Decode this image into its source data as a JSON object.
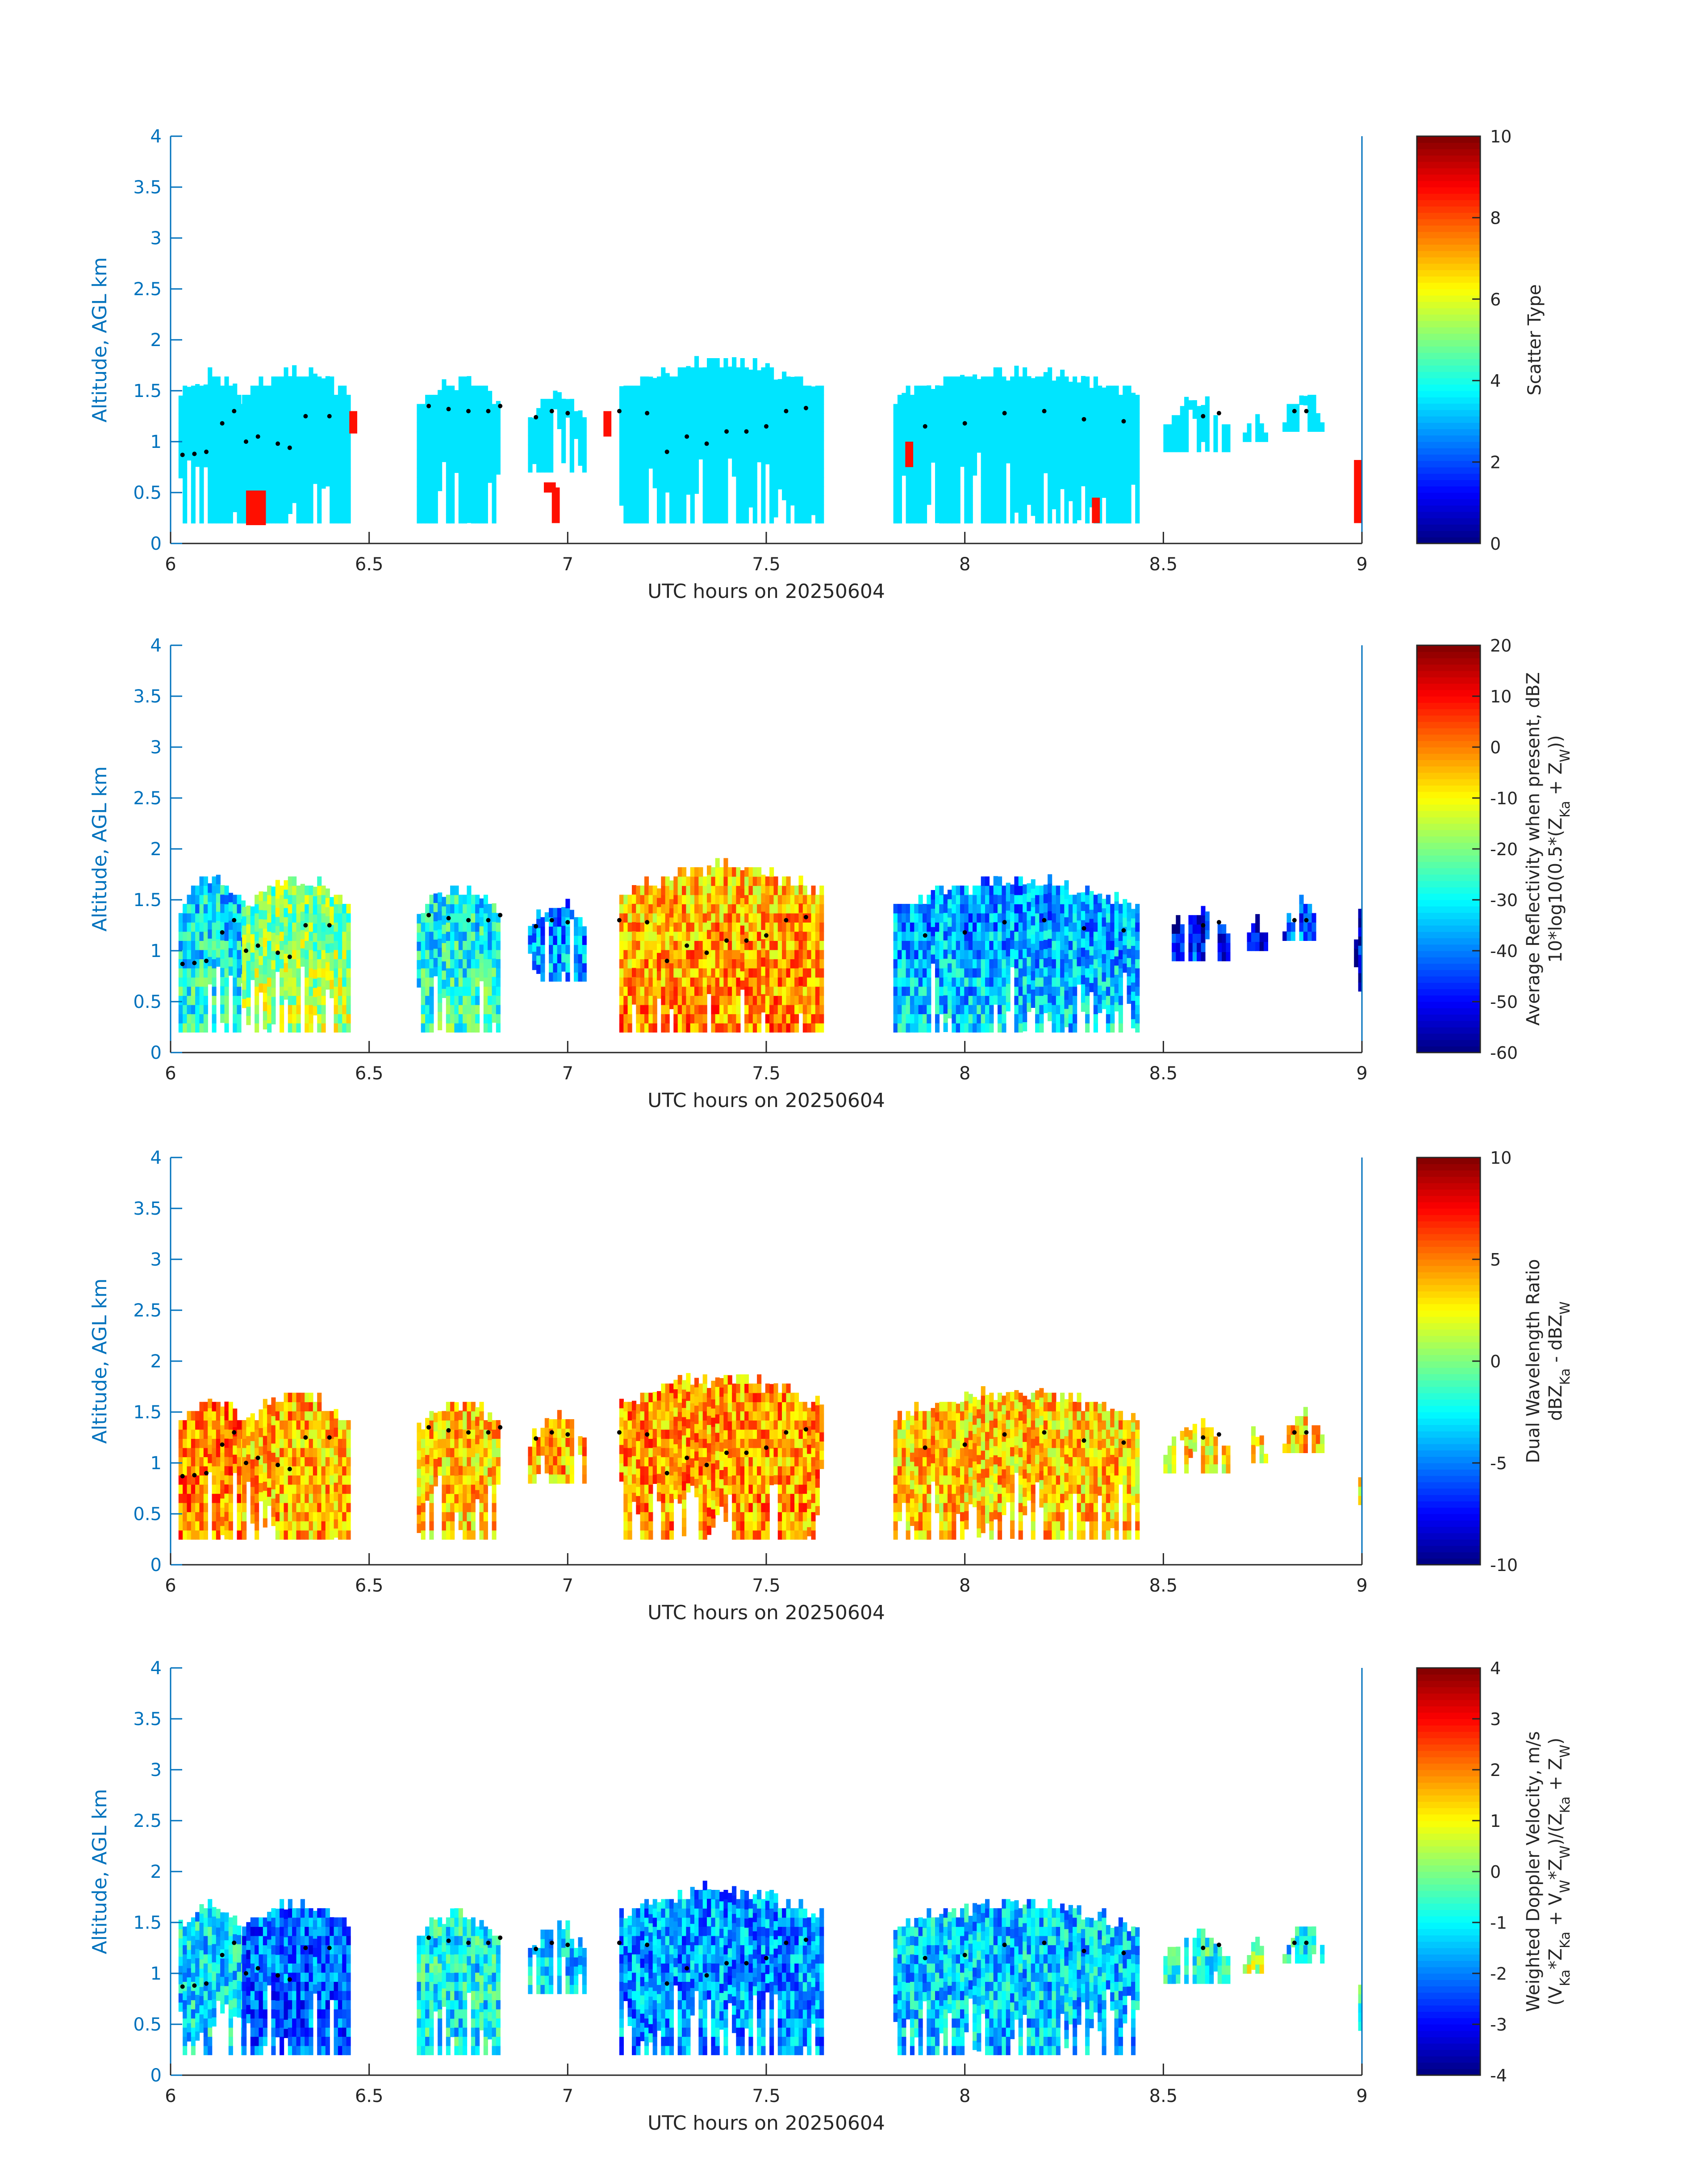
{
  "chart_data": [
    {
      "type": "heatmap",
      "panel": "scatter-type",
      "xlabel": "UTC hours on 20250604",
      "ylabel": "Altitude, AGL km",
      "xlim": [
        6,
        9
      ],
      "ylim": [
        0,
        4
      ],
      "xticks": [
        "6",
        "6.5",
        "7",
        "7.5",
        "8",
        "8.5",
        "9"
      ],
      "yticks": [
        "0",
        "0.5",
        "1",
        "1.5",
        "2",
        "2.5",
        "3",
        "3.5",
        "4"
      ],
      "colorbar": {
        "title_lines": [
          "Scatter Type"
        ],
        "range": [
          0,
          10
        ],
        "ticks": [
          "0",
          "2",
          "4",
          "6",
          "8",
          "10"
        ]
      },
      "colormap": "jet",
      "cloud_blocks": [
        {
          "x0": 6.02,
          "x1": 6.18,
          "base": 0.2,
          "top": 1.6,
          "value": 3.5
        },
        {
          "x0": 6.18,
          "x1": 6.45,
          "base": 0.2,
          "top": 1.65,
          "value": 3.5
        },
        {
          "x0": 6.62,
          "x1": 6.83,
          "base": 0.2,
          "top": 1.55,
          "value": 3.5
        },
        {
          "x0": 6.9,
          "x1": 7.04,
          "base": 0.7,
          "top": 1.42,
          "value": 3.5
        },
        {
          "x0": 7.13,
          "x1": 7.64,
          "base": 0.2,
          "top": 1.72,
          "value": 3.5
        },
        {
          "x0": 7.82,
          "x1": 8.43,
          "base": 0.2,
          "top": 1.65,
          "value": 3.5
        },
        {
          "x0": 8.5,
          "x1": 8.66,
          "base": 0.9,
          "top": 1.35,
          "value": 3.5
        },
        {
          "x0": 8.7,
          "x1": 8.76,
          "base": 1.0,
          "top": 1.25,
          "value": 3.5
        },
        {
          "x0": 8.8,
          "x1": 8.9,
          "base": 1.1,
          "top": 1.42,
          "value": 3.5
        }
      ],
      "extra_patches": [
        {
          "x0": 6.19,
          "x1": 6.24,
          "base": 0.18,
          "top": 0.52,
          "value": 8.6
        },
        {
          "x0": 6.45,
          "x1": 6.47,
          "base": 1.08,
          "top": 1.3,
          "value": 8.6
        },
        {
          "x0": 6.94,
          "x1": 6.97,
          "base": 0.5,
          "top": 0.6,
          "value": 8.6
        },
        {
          "x0": 6.96,
          "x1": 6.98,
          "base": 0.2,
          "top": 0.55,
          "value": 8.6
        },
        {
          "x0": 7.09,
          "x1": 7.11,
          "base": 1.05,
          "top": 1.3,
          "value": 8.6
        },
        {
          "x0": 7.85,
          "x1": 7.87,
          "base": 0.75,
          "top": 1.0,
          "value": 8.6
        },
        {
          "x0": 8.32,
          "x1": 8.34,
          "base": 0.2,
          "top": 0.45,
          "value": 8.6
        },
        {
          "x0": 8.98,
          "x1": 9.0,
          "base": 0.2,
          "top": 0.82,
          "value": 8.6
        }
      ],
      "cloud_top_dots": [
        [
          6.03,
          0.87
        ],
        [
          6.06,
          0.88
        ],
        [
          6.09,
          0.9
        ],
        [
          6.13,
          1.18
        ],
        [
          6.16,
          1.3
        ],
        [
          6.19,
          1.0
        ],
        [
          6.22,
          1.05
        ],
        [
          6.27,
          0.98
        ],
        [
          6.3,
          0.94
        ],
        [
          6.34,
          1.25
        ],
        [
          6.4,
          1.25
        ],
        [
          6.65,
          1.35
        ],
        [
          6.7,
          1.32
        ],
        [
          6.75,
          1.3
        ],
        [
          6.8,
          1.3
        ],
        [
          6.83,
          1.35
        ],
        [
          6.92,
          1.24
        ],
        [
          6.96,
          1.3
        ],
        [
          7.0,
          1.28
        ],
        [
          7.13,
          1.3
        ],
        [
          7.2,
          1.28
        ],
        [
          7.25,
          0.9
        ],
        [
          7.3,
          1.05
        ],
        [
          7.35,
          0.98
        ],
        [
          7.4,
          1.1
        ],
        [
          7.45,
          1.1
        ],
        [
          7.5,
          1.15
        ],
        [
          7.55,
          1.3
        ],
        [
          7.6,
          1.33
        ],
        [
          7.9,
          1.15
        ],
        [
          8.0,
          1.18
        ],
        [
          8.1,
          1.28
        ],
        [
          8.2,
          1.3
        ],
        [
          8.3,
          1.22
        ],
        [
          8.4,
          1.2
        ],
        [
          8.6,
          1.25
        ],
        [
          8.64,
          1.28
        ],
        [
          8.83,
          1.3
        ],
        [
          8.86,
          1.3
        ]
      ]
    },
    {
      "type": "heatmap",
      "panel": "average-reflectivity",
      "xlabel": "UTC hours on 20250604",
      "ylabel": "Altitude, AGL km",
      "xlim": [
        6,
        9
      ],
      "ylim": [
        0,
        4
      ],
      "xticks": [
        "6",
        "6.5",
        "7",
        "7.5",
        "8",
        "8.5",
        "9"
      ],
      "yticks": [
        "0",
        "0.5",
        "1",
        "1.5",
        "2",
        "2.5",
        "3",
        "3.5",
        "4"
      ],
      "colorbar": {
        "title_lines": [
          "Average Reflectivity when present, dBZ",
          "10*log10(0.5*(Z_Ka + Z_W))"
        ],
        "range": [
          -60,
          20
        ],
        "ticks": [
          "-60",
          "-50",
          "-40",
          "-30",
          "-20",
          "-10",
          "0",
          "10",
          "20"
        ]
      },
      "colormap": "jet",
      "cloud_blocks": [
        {
          "x0": 6.02,
          "x1": 6.18,
          "base": 0.2,
          "top": 1.65,
          "value": -30
        },
        {
          "x0": 6.18,
          "x1": 6.45,
          "base": 0.2,
          "top": 1.65,
          "value": -18
        },
        {
          "x0": 6.62,
          "x1": 6.83,
          "base": 0.2,
          "top": 1.57,
          "value": -28
        },
        {
          "x0": 6.9,
          "x1": 7.04,
          "base": 0.7,
          "top": 1.42,
          "value": -38
        },
        {
          "x0": 7.13,
          "x1": 7.64,
          "base": 0.2,
          "top": 1.78,
          "value": -3
        },
        {
          "x0": 7.82,
          "x1": 8.43,
          "base": 0.2,
          "top": 1.65,
          "value": -36
        },
        {
          "x0": 8.5,
          "x1": 8.66,
          "base": 0.9,
          "top": 1.35,
          "value": -50
        },
        {
          "x0": 8.7,
          "x1": 8.76,
          "base": 1.0,
          "top": 1.25,
          "value": -50
        },
        {
          "x0": 8.8,
          "x1": 8.9,
          "base": 1.1,
          "top": 1.42,
          "value": -45
        },
        {
          "x0": 8.98,
          "x1": 9.0,
          "base": 0.2,
          "top": 1.3,
          "value": -50
        }
      ],
      "cloud_top_dots": [
        [
          6.03,
          0.87
        ],
        [
          6.06,
          0.88
        ],
        [
          6.09,
          0.9
        ],
        [
          6.13,
          1.18
        ],
        [
          6.16,
          1.3
        ],
        [
          6.19,
          1.0
        ],
        [
          6.22,
          1.05
        ],
        [
          6.27,
          0.98
        ],
        [
          6.3,
          0.94
        ],
        [
          6.34,
          1.25
        ],
        [
          6.4,
          1.25
        ],
        [
          6.65,
          1.35
        ],
        [
          6.7,
          1.32
        ],
        [
          6.75,
          1.3
        ],
        [
          6.8,
          1.3
        ],
        [
          6.83,
          1.35
        ],
        [
          6.92,
          1.24
        ],
        [
          6.96,
          1.3
        ],
        [
          7.0,
          1.28
        ],
        [
          7.13,
          1.3
        ],
        [
          7.2,
          1.28
        ],
        [
          7.25,
          0.9
        ],
        [
          7.3,
          1.05
        ],
        [
          7.35,
          0.98
        ],
        [
          7.4,
          1.1
        ],
        [
          7.45,
          1.1
        ],
        [
          7.5,
          1.15
        ],
        [
          7.55,
          1.3
        ],
        [
          7.6,
          1.33
        ],
        [
          7.9,
          1.15
        ],
        [
          8.0,
          1.18
        ],
        [
          8.1,
          1.28
        ],
        [
          8.2,
          1.3
        ],
        [
          8.3,
          1.22
        ],
        [
          8.4,
          1.2
        ],
        [
          8.6,
          1.25
        ],
        [
          8.64,
          1.28
        ],
        [
          8.83,
          1.3
        ],
        [
          8.86,
          1.3
        ]
      ]
    },
    {
      "type": "heatmap",
      "panel": "dual-wavelength-ratio",
      "xlabel": "UTC hours on 20250604",
      "ylabel": "Altitude, AGL km",
      "xlim": [
        6,
        9
      ],
      "ylim": [
        0,
        4
      ],
      "xticks": [
        "6",
        "6.5",
        "7",
        "7.5",
        "8",
        "8.5",
        "9"
      ],
      "yticks": [
        "0",
        "0.5",
        "1",
        "1.5",
        "2",
        "2.5",
        "3",
        "3.5",
        "4"
      ],
      "colorbar": {
        "title_lines": [
          "Dual Wavelength Ratio",
          "dBZ_Ka - dBZ_W"
        ],
        "range": [
          -10,
          10
        ],
        "ticks": [
          "-10",
          "-5",
          "0",
          "5",
          "10"
        ]
      },
      "colormap": "jet",
      "cloud_blocks": [
        {
          "x0": 6.02,
          "x1": 6.18,
          "base": 0.25,
          "top": 1.6,
          "value": 5
        },
        {
          "x0": 6.18,
          "x1": 6.45,
          "base": 0.25,
          "top": 1.6,
          "value": 4
        },
        {
          "x0": 6.62,
          "x1": 6.83,
          "base": 0.25,
          "top": 1.57,
          "value": 3.5
        },
        {
          "x0": 6.9,
          "x1": 7.04,
          "base": 0.8,
          "top": 1.42,
          "value": 4
        },
        {
          "x0": 7.13,
          "x1": 7.64,
          "base": 0.25,
          "top": 1.78,
          "value": 4.5
        },
        {
          "x0": 7.82,
          "x1": 8.43,
          "base": 0.25,
          "top": 1.65,
          "value": 3.5
        },
        {
          "x0": 8.5,
          "x1": 8.66,
          "base": 0.9,
          "top": 1.35,
          "value": 3
        },
        {
          "x0": 8.7,
          "x1": 8.76,
          "base": 1.0,
          "top": 1.25,
          "value": 3
        },
        {
          "x0": 8.8,
          "x1": 8.9,
          "base": 1.1,
          "top": 1.42,
          "value": 3.5
        },
        {
          "x0": 8.98,
          "x1": 9.0,
          "base": 0.25,
          "top": 0.8,
          "value": 2
        }
      ],
      "cloud_top_dots": [
        [
          6.03,
          0.87
        ],
        [
          6.06,
          0.88
        ],
        [
          6.09,
          0.9
        ],
        [
          6.13,
          1.18
        ],
        [
          6.16,
          1.3
        ],
        [
          6.19,
          1.0
        ],
        [
          6.22,
          1.05
        ],
        [
          6.27,
          0.98
        ],
        [
          6.3,
          0.94
        ],
        [
          6.34,
          1.25
        ],
        [
          6.4,
          1.25
        ],
        [
          6.65,
          1.35
        ],
        [
          6.7,
          1.32
        ],
        [
          6.75,
          1.3
        ],
        [
          6.8,
          1.3
        ],
        [
          6.83,
          1.35
        ],
        [
          6.92,
          1.24
        ],
        [
          6.96,
          1.3
        ],
        [
          7.0,
          1.28
        ],
        [
          7.13,
          1.3
        ],
        [
          7.2,
          1.28
        ],
        [
          7.25,
          0.9
        ],
        [
          7.3,
          1.05
        ],
        [
          7.35,
          0.98
        ],
        [
          7.4,
          1.1
        ],
        [
          7.45,
          1.1
        ],
        [
          7.5,
          1.15
        ],
        [
          7.55,
          1.3
        ],
        [
          7.6,
          1.33
        ],
        [
          7.9,
          1.15
        ],
        [
          8.0,
          1.18
        ],
        [
          8.1,
          1.28
        ],
        [
          8.2,
          1.3
        ],
        [
          8.3,
          1.22
        ],
        [
          8.4,
          1.2
        ],
        [
          8.6,
          1.25
        ],
        [
          8.64,
          1.28
        ],
        [
          8.83,
          1.3
        ],
        [
          8.86,
          1.3
        ]
      ]
    },
    {
      "type": "heatmap",
      "panel": "weighted-doppler-velocity",
      "xlabel": "UTC hours on 20250604",
      "ylabel": "Altitude, AGL km",
      "xlim": [
        6,
        9
      ],
      "ylim": [
        0,
        4
      ],
      "xticks": [
        "6",
        "6.5",
        "7",
        "7.5",
        "8",
        "8.5",
        "9"
      ],
      "yticks": [
        "0",
        "0.5",
        "1",
        "1.5",
        "2",
        "2.5",
        "3",
        "3.5",
        "4"
      ],
      "colorbar": {
        "title_lines": [
          "Weighted Doppler Velocity, m/s",
          "(V_Ka*Z_Ka + V_W*Z_W)/(Z_Ka + Z_W)"
        ],
        "range": [
          -4,
          4
        ],
        "ticks": [
          "-4",
          "-3",
          "-2",
          "-1",
          "0",
          "1",
          "2",
          "3",
          "4"
        ]
      },
      "colormap": "jet",
      "cloud_blocks": [
        {
          "x0": 6.02,
          "x1": 6.18,
          "base": 0.2,
          "top": 1.65,
          "value": -1.2
        },
        {
          "x0": 6.18,
          "x1": 6.45,
          "base": 0.2,
          "top": 1.65,
          "value": -2.2
        },
        {
          "x0": 6.62,
          "x1": 6.83,
          "base": 0.2,
          "top": 1.55,
          "value": -1
        },
        {
          "x0": 6.9,
          "x1": 7.04,
          "base": 0.8,
          "top": 1.42,
          "value": -1.3
        },
        {
          "x0": 7.13,
          "x1": 7.64,
          "base": 0.2,
          "top": 1.78,
          "value": -1.8
        },
        {
          "x0": 7.82,
          "x1": 8.43,
          "base": 0.2,
          "top": 1.65,
          "value": -1.4
        },
        {
          "x0": 8.5,
          "x1": 8.66,
          "base": 0.9,
          "top": 1.35,
          "value": -0.8
        },
        {
          "x0": 8.7,
          "x1": 8.76,
          "base": 1.0,
          "top": 1.25,
          "value": 0.3
        },
        {
          "x0": 8.8,
          "x1": 8.9,
          "base": 1.1,
          "top": 1.42,
          "value": -1
        },
        {
          "x0": 8.98,
          "x1": 9.0,
          "base": 0.2,
          "top": 0.8,
          "value": -0.5
        }
      ],
      "cloud_top_dots": [
        [
          6.03,
          0.87
        ],
        [
          6.06,
          0.88
        ],
        [
          6.09,
          0.9
        ],
        [
          6.13,
          1.18
        ],
        [
          6.16,
          1.3
        ],
        [
          6.19,
          1.0
        ],
        [
          6.22,
          1.05
        ],
        [
          6.27,
          0.98
        ],
        [
          6.3,
          0.94
        ],
        [
          6.34,
          1.25
        ],
        [
          6.4,
          1.25
        ],
        [
          6.65,
          1.35
        ],
        [
          6.7,
          1.32
        ],
        [
          6.75,
          1.3
        ],
        [
          6.8,
          1.3
        ],
        [
          6.83,
          1.35
        ],
        [
          6.92,
          1.24
        ],
        [
          6.96,
          1.3
        ],
        [
          7.0,
          1.28
        ],
        [
          7.13,
          1.3
        ],
        [
          7.2,
          1.28
        ],
        [
          7.25,
          0.9
        ],
        [
          7.3,
          1.05
        ],
        [
          7.35,
          0.98
        ],
        [
          7.4,
          1.1
        ],
        [
          7.45,
          1.1
        ],
        [
          7.5,
          1.15
        ],
        [
          7.55,
          1.3
        ],
        [
          7.6,
          1.33
        ],
        [
          7.9,
          1.15
        ],
        [
          8.0,
          1.18
        ],
        [
          8.1,
          1.28
        ],
        [
          8.2,
          1.3
        ],
        [
          8.3,
          1.22
        ],
        [
          8.4,
          1.2
        ],
        [
          8.6,
          1.25
        ],
        [
          8.64,
          1.28
        ],
        [
          8.83,
          1.3
        ],
        [
          8.86,
          1.3
        ]
      ]
    }
  ]
}
